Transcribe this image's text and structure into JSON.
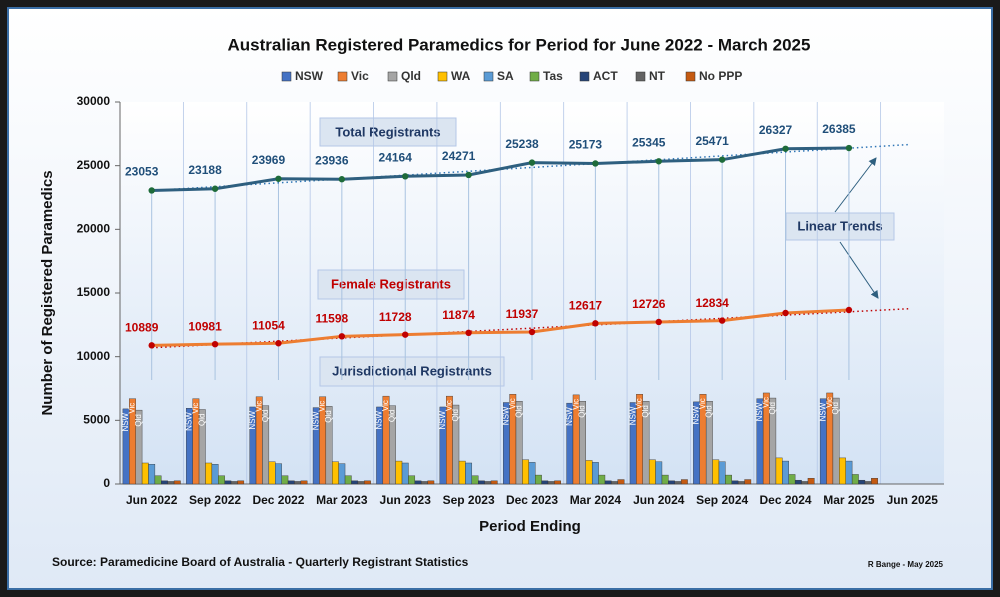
{
  "chart_data": {
    "type": "bar-line",
    "title": "Australian Registered Paramedics for Period for June 2022 - March 2025",
    "y_label": "Number of Registered Paramedics",
    "x_label": "Period Ending",
    "source": "Source: Paramedicine Board of Australia - Quarterly Registrant Statistics",
    "credit": "R Bange - May 2025",
    "annotations": [
      "Total Registrants",
      "Female Registrants",
      "Jurisdictional Registrants",
      "Linear Trends"
    ],
    "categories": [
      "Jun 2022",
      "Sep 2022",
      "Dec 2022",
      "Mar 2023",
      "Jun 2023",
      "Sep 2023",
      "Dec 2023",
      "Mar 2024",
      "Jun 2024",
      "Sep 2024",
      "Dec 2024",
      "Mar 2025",
      "Jun 2025"
    ],
    "ylim": [
      0,
      30000
    ],
    "yticks": [
      0,
      5000,
      10000,
      15000,
      20000,
      25000,
      30000
    ],
    "series": [
      {
        "name": "NSW",
        "color": "#4472c4",
        "values": [
          5900,
          5950,
          6050,
          6000,
          6050,
          6050,
          6400,
          6350,
          6400,
          6450,
          6700,
          6700,
          null
        ]
      },
      {
        "name": "Vic",
        "color": "#ed7d31",
        "values": [
          6700,
          6700,
          6850,
          6850,
          6900,
          6900,
          7050,
          7000,
          7050,
          7050,
          7150,
          7150,
          null
        ]
      },
      {
        "name": "Qld",
        "color": "#a5a5a5",
        "values": [
          5800,
          5850,
          6150,
          6100,
          6150,
          6200,
          6500,
          6500,
          6500,
          6500,
          6750,
          6750,
          null
        ]
      },
      {
        "name": "WA",
        "color": "#ffc000",
        "values": [
          1650,
          1650,
          1750,
          1750,
          1800,
          1800,
          1900,
          1850,
          1900,
          1900,
          2050,
          2050,
          null
        ]
      },
      {
        "name": "SA",
        "color": "#5b9bd5",
        "values": [
          1550,
          1550,
          1600,
          1600,
          1650,
          1650,
          1700,
          1700,
          1750,
          1750,
          1800,
          1800,
          null
        ]
      },
      {
        "name": "Tas",
        "color": "#70ad47",
        "values": [
          650,
          650,
          650,
          650,
          650,
          650,
          700,
          700,
          700,
          700,
          750,
          750,
          null
        ]
      },
      {
        "name": "ACT",
        "color": "#264478",
        "values": [
          250,
          250,
          250,
          250,
          250,
          250,
          250,
          250,
          250,
          250,
          300,
          300,
          null
        ]
      },
      {
        "name": "NT",
        "color": "#636363",
        "values": [
          200,
          200,
          200,
          200,
          200,
          200,
          200,
          200,
          200,
          200,
          200,
          200,
          null
        ]
      },
      {
        "name": "No PPP",
        "color": "#c55a11",
        "values": [
          250,
          250,
          250,
          250,
          250,
          250,
          250,
          350,
          350,
          350,
          450,
          450,
          null
        ]
      }
    ],
    "lines": [
      {
        "color": "#2e5f7f",
        "marker_color": "#1e6b3a",
        "label_color": "#1f4e79",
        "values": [
          23053,
          23188,
          23969,
          23936,
          24164,
          24271,
          25238,
          25173,
          25345,
          25471,
          26327,
          26385,
          null
        ]
      },
      {
        "color": "#ed7d31",
        "marker_color": "#c00000",
        "label_color": "#c00000",
        "values": [
          10889,
          10981,
          11054,
          11598,
          11728,
          11874,
          11937,
          12617,
          12726,
          12834,
          13430,
          13665,
          null
        ],
        "value_labels": [
          "10889",
          "10981",
          "11054",
          "11598",
          "11728",
          "11874",
          "11937",
          "12617",
          "12726",
          "12834",
          null,
          null
        ]
      }
    ]
  }
}
